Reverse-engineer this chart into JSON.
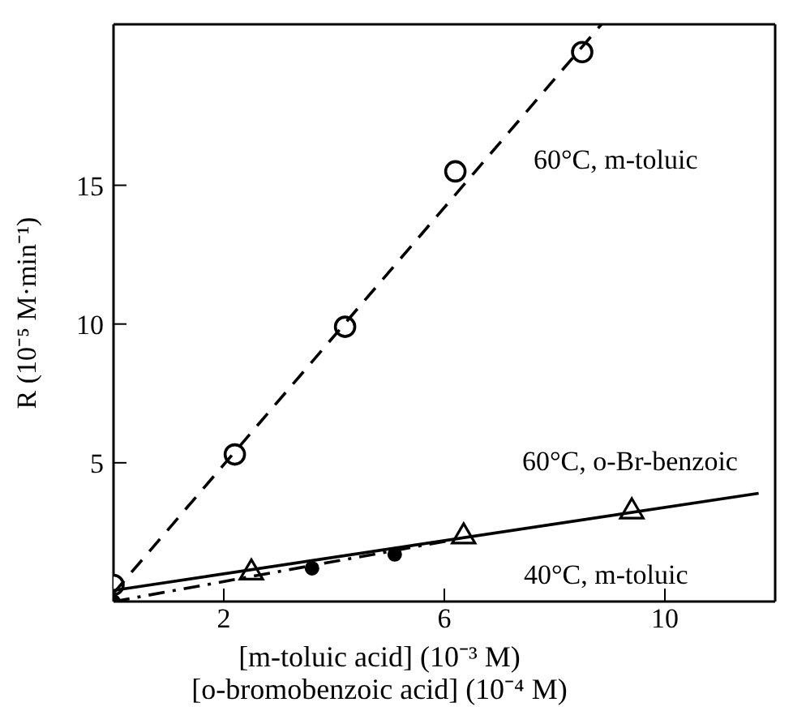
{
  "chart_data": {
    "type": "scatter",
    "xlabel": "[m-toluic acid] (10⁻³ M)\n[o-bromobenzoic acid] (10⁻⁴ M)",
    "ylabel": "R (10⁻⁵ M·min⁻¹)",
    "xlim": [
      0,
      12
    ],
    "ylim": [
      0,
      20.8
    ],
    "xticks": [
      2,
      6,
      10
    ],
    "yticks": [
      5,
      10,
      15
    ],
    "grid": false,
    "legend": false,
    "series": [
      {
        "marker": "circle",
        "color": "#000000",
        "x": [
          0,
          2.2,
          4.2,
          6.2,
          8.5
        ],
        "values": [
          0.6,
          5.3,
          9.9,
          15.5,
          19.8
        ]
      },
      {
        "type": "line",
        "line_style": "dashed",
        "marker": "none",
        "color": "#000000",
        "x": [
          0,
          8.85
        ],
        "values": [
          0.3,
          20.8
        ]
      },
      {
        "marker": "triangle",
        "color": "#000000",
        "x": [
          2.5,
          6.35,
          9.4
        ],
        "values": [
          1.1,
          2.4,
          3.3
        ]
      },
      {
        "type": "line",
        "line_style": "solid",
        "marker": "none",
        "color": "#000000",
        "x": [
          0,
          11.7
        ],
        "values": [
          0.4,
          3.9
        ]
      },
      {
        "marker": "dot",
        "color": "#000000",
        "x": [
          0,
          3.6,
          5.1
        ],
        "values": [
          0,
          1.2,
          1.7
        ]
      },
      {
        "type": "line",
        "line_style": "dashdot",
        "marker": "none",
        "color": "#000000",
        "x": [
          0,
          6.1
        ],
        "values": [
          0,
          2.2
        ]
      }
    ],
    "annotations": [
      "60°C, m-toluic",
      "60°C, o-Br-benzoic",
      "40°C, m-toluic"
    ]
  }
}
